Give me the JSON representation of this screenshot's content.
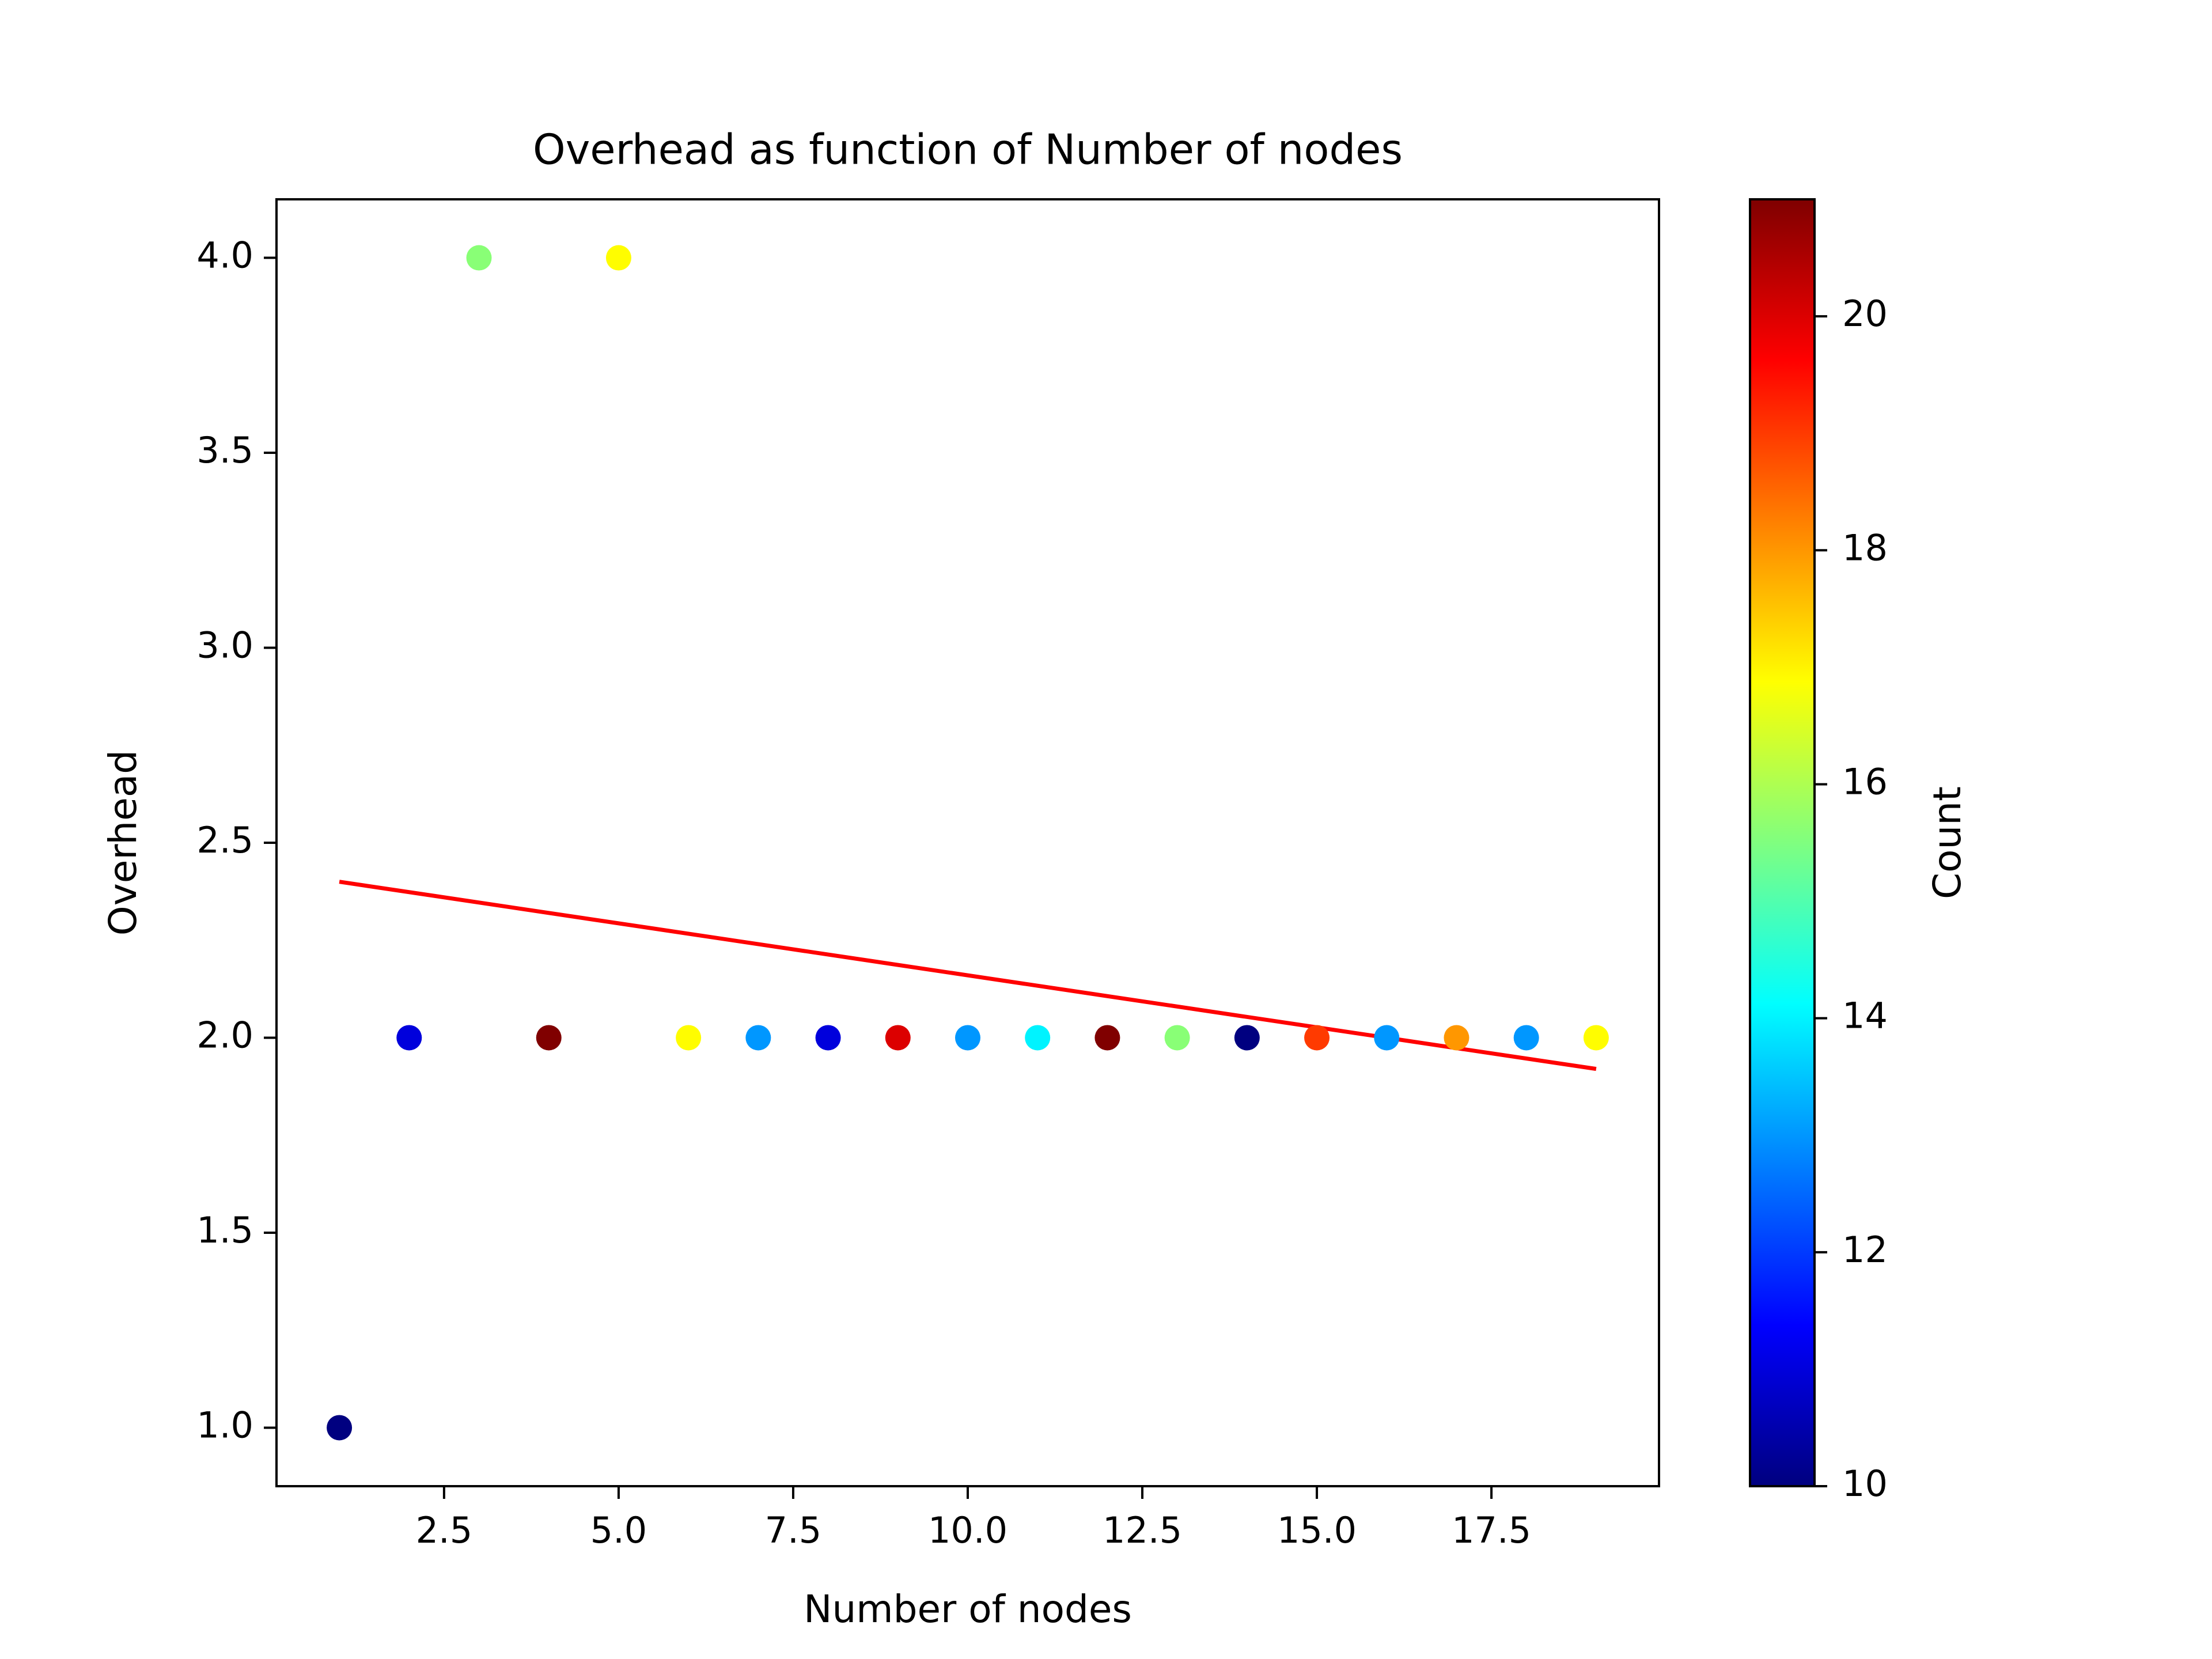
{
  "chart_data": {
    "type": "scatter",
    "title": "Overhead as function of Number of nodes",
    "xlabel": "Number of nodes",
    "ylabel": "Overhead",
    "xlim": [
      0.1,
      19.9
    ],
    "ylim": [
      0.85,
      4.15
    ],
    "x_ticks": [
      2.5,
      5.0,
      7.5,
      10.0,
      12.5,
      15.0,
      17.5
    ],
    "x_tick_labels": [
      "2.5",
      "5.0",
      "7.5",
      "10.0",
      "12.5",
      "15.0",
      "17.5"
    ],
    "y_ticks": [
      1.0,
      1.5,
      2.0,
      2.5,
      3.0,
      3.5,
      4.0
    ],
    "y_tick_labels": [
      "1.0",
      "1.5",
      "2.0",
      "2.5",
      "3.0",
      "3.5",
      "4.0"
    ],
    "grid": false,
    "points": [
      {
        "x": 1,
        "y": 1.0,
        "count": 10
      },
      {
        "x": 2,
        "y": 2.0,
        "count": 11
      },
      {
        "x": 3,
        "y": 4.0,
        "count": 15.6
      },
      {
        "x": 4,
        "y": 2.0,
        "count": 21
      },
      {
        "x": 5,
        "y": 4.0,
        "count": 16.9
      },
      {
        "x": 6,
        "y": 2.0,
        "count": 16.9
      },
      {
        "x": 7,
        "y": 2.0,
        "count": 13
      },
      {
        "x": 8,
        "y": 2.0,
        "count": 11
      },
      {
        "x": 9,
        "y": 2.0,
        "count": 20
      },
      {
        "x": 10,
        "y": 2.0,
        "count": 13
      },
      {
        "x": 11,
        "y": 2.0,
        "count": 14
      },
      {
        "x": 12,
        "y": 2.0,
        "count": 21
      },
      {
        "x": 13,
        "y": 2.0,
        "count": 15.6
      },
      {
        "x": 14,
        "y": 2.0,
        "count": 10
      },
      {
        "x": 15,
        "y": 2.0,
        "count": 19
      },
      {
        "x": 16,
        "y": 2.0,
        "count": 13
      },
      {
        "x": 17,
        "y": 2.0,
        "count": 18
      },
      {
        "x": 18,
        "y": 2.0,
        "count": 13
      },
      {
        "x": 19,
        "y": 2.0,
        "count": 16.9
      }
    ],
    "trend_line": {
      "x": [
        1,
        19
      ],
      "y": [
        2.4,
        1.92
      ],
      "color": "#ff0000"
    },
    "colorbar": {
      "label": "Count",
      "colormap": "jet",
      "range": [
        10,
        21
      ],
      "ticks": [
        10,
        12,
        14,
        16,
        18,
        20
      ],
      "tick_labels": [
        "10",
        "12",
        "14",
        "16",
        "18",
        "20"
      ]
    }
  }
}
